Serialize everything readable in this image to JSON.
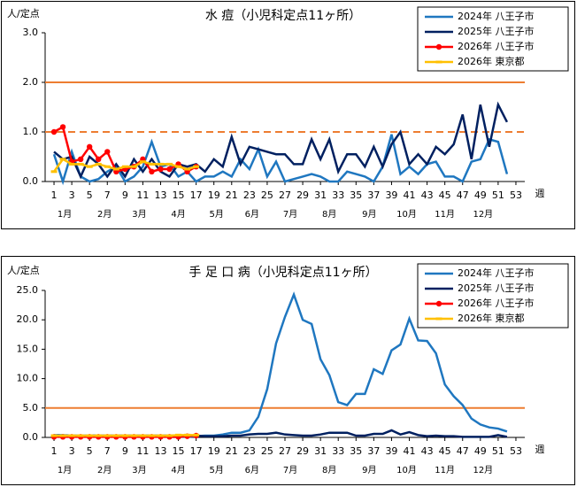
{
  "chart_data": [
    {
      "type": "line",
      "title": "水 痘（小児科定点11ヶ所）",
      "ylabel": "人/定点",
      "xlabel": "週",
      "x": [
        1,
        2,
        3,
        4,
        5,
        6,
        7,
        8,
        9,
        10,
        11,
        12,
        13,
        14,
        15,
        16,
        17,
        18,
        19,
        20,
        21,
        22,
        23,
        24,
        25,
        26,
        27,
        28,
        29,
        30,
        31,
        32,
        33,
        34,
        35,
        36,
        37,
        38,
        39,
        40,
        41,
        42,
        43,
        44,
        45,
        46,
        47,
        48,
        49,
        50,
        51,
        52,
        53
      ],
      "xlim": [
        0,
        54
      ],
      "xticks": [
        1,
        3,
        5,
        7,
        9,
        11,
        13,
        15,
        17,
        19,
        21,
        23,
        25,
        27,
        29,
        31,
        33,
        35,
        37,
        39,
        41,
        43,
        45,
        47,
        49,
        51,
        53
      ],
      "ylim": [
        0,
        3
      ],
      "yticks": [
        {
          "value": 0,
          "label": "0.0"
        },
        {
          "value": 1,
          "label": "1.0"
        },
        {
          "value": 2,
          "label": "2.0"
        },
        {
          "value": 3,
          "label": "3.0"
        }
      ],
      "month_labels": [
        "1月",
        "2月",
        "3月",
        "4月",
        "5月",
        "6月",
        "7月",
        "8月",
        "9月",
        "10月",
        "11月",
        "12月"
      ],
      "reference_lines": [
        {
          "value": 2,
          "color": "#ed7d31",
          "style": "solid"
        },
        {
          "value": 1,
          "color": "#ed7d31",
          "style": "dashed"
        }
      ],
      "series": [
        {
          "name": "2024年 八王子市",
          "color": "#1f77c0",
          "marker": "none",
          "values": [
            0.55,
            0.0,
            0.6,
            0.1,
            0.0,
            0.05,
            0.2,
            0.3,
            0.0,
            0.1,
            0.3,
            0.8,
            0.3,
            0.35,
            0.1,
            0.2,
            0.0,
            0.1,
            0.1,
            0.2,
            0.1,
            0.45,
            0.25,
            0.65,
            0.1,
            0.4,
            0.0,
            0.05,
            0.1,
            0.15,
            0.1,
            0.0,
            0.0,
            0.2,
            0.15,
            0.1,
            0.0,
            0.3,
            0.95,
            0.15,
            0.3,
            0.15,
            0.35,
            0.4,
            0.1,
            0.1,
            0.0,
            0.4,
            0.45,
            0.85,
            0.8,
            0.15,
            null
          ]
        },
        {
          "name": "2025年 八王子市",
          "color": "#002060",
          "marker": "none",
          "values": [
            0.6,
            0.45,
            0.5,
            0.1,
            0.5,
            0.35,
            0.1,
            0.35,
            0.1,
            0.45,
            0.2,
            0.45,
            0.2,
            0.1,
            0.35,
            0.3,
            0.35,
            0.2,
            0.45,
            0.3,
            0.9,
            0.35,
            0.7,
            0.65,
            0.6,
            0.55,
            0.55,
            0.35,
            0.35,
            0.85,
            0.45,
            0.85,
            0.2,
            0.55,
            0.55,
            0.3,
            0.7,
            0.3,
            0.75,
            1.0,
            0.35,
            0.55,
            0.35,
            0.7,
            0.55,
            0.75,
            1.35,
            0.45,
            1.55,
            0.7,
            1.55,
            1.2,
            null
          ]
        },
        {
          "name": "2026年 八王子市",
          "color": "#ff0000",
          "marker": "circle",
          "values": [
            1.0,
            1.1,
            0.4,
            0.45,
            0.7,
            0.45,
            0.6,
            0.2,
            0.25,
            0.3,
            0.45,
            0.2,
            0.25,
            0.25,
            0.35,
            0.2,
            0.3,
            null,
            null,
            null,
            null,
            null,
            null,
            null,
            null,
            null,
            null,
            null,
            null,
            null,
            null,
            null,
            null,
            null,
            null,
            null,
            null,
            null,
            null,
            null,
            null,
            null,
            null,
            null,
            null,
            null,
            null,
            null,
            null,
            null,
            null,
            null,
            null
          ]
        },
        {
          "name": "2026年 東京都",
          "color": "#ffc000",
          "marker": "square",
          "values": [
            0.2,
            0.45,
            0.35,
            0.35,
            0.3,
            0.35,
            0.3,
            0.25,
            0.3,
            0.3,
            0.4,
            0.35,
            0.35,
            0.35,
            0.3,
            0.25,
            0.3,
            null,
            null,
            null,
            null,
            null,
            null,
            null,
            null,
            null,
            null,
            null,
            null,
            null,
            null,
            null,
            null,
            null,
            null,
            null,
            null,
            null,
            null,
            null,
            null,
            null,
            null,
            null,
            null,
            null,
            null,
            null,
            null,
            null,
            null,
            null,
            null
          ]
        }
      ]
    },
    {
      "type": "line",
      "title": "手 足 口 病（小児科定点11ヶ所）",
      "ylabel": "人/定点",
      "xlabel": "週",
      "x": [
        1,
        2,
        3,
        4,
        5,
        6,
        7,
        8,
        9,
        10,
        11,
        12,
        13,
        14,
        15,
        16,
        17,
        18,
        19,
        20,
        21,
        22,
        23,
        24,
        25,
        26,
        27,
        28,
        29,
        30,
        31,
        32,
        33,
        34,
        35,
        36,
        37,
        38,
        39,
        40,
        41,
        42,
        43,
        44,
        45,
        46,
        47,
        48,
        49,
        50,
        51,
        52,
        53
      ],
      "xlim": [
        0,
        54
      ],
      "xticks": [
        1,
        3,
        5,
        7,
        9,
        11,
        13,
        15,
        17,
        19,
        21,
        23,
        25,
        27,
        29,
        31,
        33,
        35,
        37,
        39,
        41,
        43,
        45,
        47,
        49,
        51,
        53
      ],
      "ylim": [
        0,
        25
      ],
      "yticks": [
        {
          "value": 0,
          "label": "0.0"
        },
        {
          "value": 5,
          "label": "5.0"
        },
        {
          "value": 10,
          "label": "10.0"
        },
        {
          "value": 15,
          "label": "15.0"
        },
        {
          "value": 20,
          "label": "20.0"
        },
        {
          "value": 25,
          "label": "25.0"
        }
      ],
      "month_labels": [
        "1月",
        "2月",
        "3月",
        "4月",
        "5月",
        "6月",
        "7月",
        "8月",
        "9月",
        "10月",
        "11月",
        "12月"
      ],
      "reference_lines": [
        {
          "value": 5,
          "color": "#ed7d31",
          "style": "solid"
        }
      ],
      "series": [
        {
          "name": "2024年 八王子市",
          "color": "#1f77c0",
          "marker": "none",
          "values": [
            0.4,
            0.4,
            0.3,
            0.3,
            0.3,
            0.3,
            0.2,
            0.2,
            0.2,
            0.2,
            0.2,
            0.2,
            0.2,
            0.1,
            0.1,
            0.1,
            0.2,
            0.3,
            0.3,
            0.5,
            0.8,
            0.8,
            1.2,
            3.5,
            8.2,
            16,
            20.5,
            24.3,
            20,
            19.3,
            13.3,
            10.6,
            6,
            5.5,
            7.4,
            7.4,
            11.6,
            10.8,
            14.8,
            15.8,
            20.2,
            16.5,
            16.4,
            14.3,
            9,
            7,
            5.5,
            3.2,
            2.2,
            1.7,
            1.5,
            1.0,
            null
          ]
        },
        {
          "name": "2025年 八王子市",
          "color": "#002060",
          "marker": "none",
          "values": [
            0.3,
            0.3,
            0.3,
            0.25,
            0.3,
            0.3,
            0.3,
            0.3,
            0.3,
            0.3,
            0.3,
            0.3,
            0.3,
            0.3,
            0.3,
            0.3,
            0.3,
            0.2,
            0.2,
            0.2,
            0.3,
            0.3,
            0.5,
            0.6,
            0.6,
            0.8,
            0.5,
            0.4,
            0.3,
            0.3,
            0.5,
            0.8,
            0.8,
            0.8,
            0.3,
            0.3,
            0.6,
            0.6,
            1.2,
            0.5,
            0.9,
            0.4,
            0.2,
            0.3,
            0.2,
            0.2,
            0.1,
            0.1,
            0.1,
            0.1,
            0.4,
            0.1,
            null
          ]
        },
        {
          "name": "2026年 八王子市",
          "color": "#ff0000",
          "marker": "circle",
          "values": [
            0.1,
            0.1,
            0.1,
            0.1,
            0.1,
            0.1,
            0.1,
            0.1,
            0.1,
            0.1,
            0.1,
            0.1,
            0.1,
            0.1,
            0.1,
            0.2,
            0.3,
            null,
            null,
            null,
            null,
            null,
            null,
            null,
            null,
            null,
            null,
            null,
            null,
            null,
            null,
            null,
            null,
            null,
            null,
            null,
            null,
            null,
            null,
            null,
            null,
            null,
            null,
            null,
            null,
            null,
            null,
            null,
            null,
            null,
            null,
            null,
            null
          ]
        },
        {
          "name": "2026年 東京都",
          "color": "#ffc000",
          "marker": "square",
          "values": [
            0.3,
            0.3,
            0.3,
            0.3,
            0.3,
            0.3,
            0.3,
            0.3,
            0.3,
            0.3,
            0.3,
            0.3,
            0.3,
            0.3,
            0.4,
            0.4,
            0.4,
            null,
            null,
            null,
            null,
            null,
            null,
            null,
            null,
            null,
            null,
            null,
            null,
            null,
            null,
            null,
            null,
            null,
            null,
            null,
            null,
            null,
            null,
            null,
            null,
            null,
            null,
            null,
            null,
            null,
            null,
            null,
            null,
            null,
            null,
            null,
            null
          ]
        }
      ]
    }
  ]
}
